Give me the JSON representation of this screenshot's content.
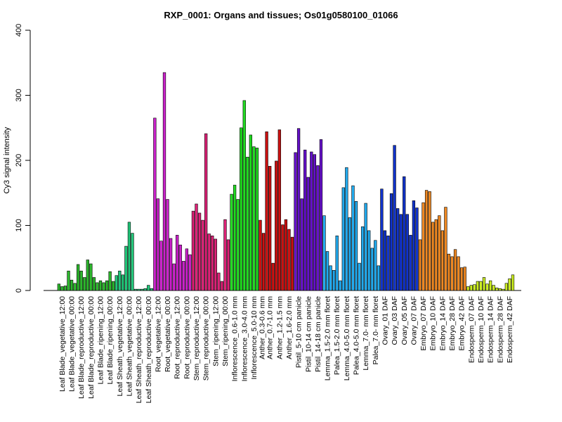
{
  "chart_data": {
    "type": "bar",
    "title": "RXP_0001: Organs and tissues; Os01g0580100_01066",
    "xlabel": "",
    "ylabel": "Cy3 signal intensity",
    "ylim": [
      0,
      400
    ],
    "yticks": [
      0,
      100,
      200,
      300,
      400
    ],
    "grid": false,
    "legend": "none",
    "groups": [
      {
        "label": "Leaf Blade_vegetative_12:00",
        "color": "#2db82d",
        "values": [
          10,
          6,
          7
        ]
      },
      {
        "label": "Leaf Blade_vegetative_00:00",
        "color": "#2db82d",
        "values": [
          30,
          16,
          11
        ]
      },
      {
        "label": "Leaf Blade_reproductive_12:00",
        "color": "#2db82d",
        "values": [
          40,
          30,
          20
        ]
      },
      {
        "label": "Leaf Blade_reproductive_00:00",
        "color": "#2db82d",
        "values": [
          47,
          41,
          20
        ]
      },
      {
        "label": "Leaf Blade_ripening_12:00",
        "color": "#2db82d",
        "values": [
          12,
          15,
          12
        ]
      },
      {
        "label": "Leaf Blade_ripening_00:00",
        "color": "#2db82d",
        "values": [
          15,
          29,
          14
        ]
      },
      {
        "label": "Leaf Sheath_vegetative_12:00",
        "color": "#22c77a",
        "values": [
          23,
          30,
          24
        ]
      },
      {
        "label": "Leaf Sheath_vegetative_00:00",
        "color": "#22c77a",
        "values": [
          68,
          105,
          88
        ]
      },
      {
        "label": "Leaf Sheath_reproductive_12:00",
        "color": "#22c77a",
        "values": [
          2,
          2,
          2
        ]
      },
      {
        "label": "Leaf Sheath_reproductive_00:00",
        "color": "#22c77a",
        "values": [
          3,
          8,
          3
        ]
      },
      {
        "label": "Root_vegetative_12:00",
        "color": "#cc22cc",
        "values": [
          265,
          141,
          76
        ]
      },
      {
        "label": "Root_vegetative_00:00",
        "color": "#cc22cc",
        "values": [
          335,
          140,
          80
        ]
      },
      {
        "label": "Root_reproductive_12:00",
        "color": "#cc22cc",
        "values": [
          41,
          85,
          70
        ]
      },
      {
        "label": "Root_reproductive_00:00",
        "color": "#cc22cc",
        "values": [
          45,
          64,
          55
        ]
      },
      {
        "label": "Stem_reproductive_12:00",
        "color": "#dd2277",
        "values": [
          122,
          133,
          119
        ]
      },
      {
        "label": "Stem_reproductive_00:00",
        "color": "#dd2277",
        "values": [
          108,
          241,
          87
        ]
      },
      {
        "label": "Stem_ripening_12:00",
        "color": "#dd2277",
        "values": [
          84,
          79,
          27
        ]
      },
      {
        "label": "Stem_ripening_00:00",
        "color": "#dd2277",
        "values": [
          14,
          109,
          78
        ]
      },
      {
        "label": "Inflorescence_0.6-1.0 mm",
        "color": "#22dd22",
        "values": [
          148,
          162,
          140
        ]
      },
      {
        "label": "Inflorescence_3.0-4.0 mm",
        "color": "#22dd22",
        "values": [
          250,
          292,
          205
        ]
      },
      {
        "label": "Inflorescence_5.0-10 mm",
        "color": "#22dd22",
        "values": [
          239,
          221,
          219
        ]
      },
      {
        "label": "Anther_0.3-0.6 mm",
        "color": "#cc1111",
        "values": [
          108,
          88
        ]
      },
      {
        "label": "Anther_0.7-1.0 mm",
        "color": "#cc1111",
        "values": [
          244,
          191,
          42
        ]
      },
      {
        "label": "Anther_1.2-1.5 mm",
        "color": "#cc1111",
        "values": [
          199,
          247,
          101
        ]
      },
      {
        "label": "Anther_1.6-2.0 mm",
        "color": "#cc1111",
        "values": [
          109,
          94,
          82
        ]
      },
      {
        "label": "Pistil_5-10 cm panicle",
        "color": "#6611cc",
        "values": [
          212,
          249,
          141
        ]
      },
      {
        "label": "Pistil_10-14 cm panicle",
        "color": "#6611cc",
        "values": [
          216,
          174,
          213
        ]
      },
      {
        "label": "Pistil_14-18 cm panicle",
        "color": "#6611cc",
        "values": [
          209,
          192,
          232
        ]
      },
      {
        "label": "Lemma_1.5-2.0 mm floret",
        "color": "#22aaee",
        "values": [
          115,
          60,
          38
        ]
      },
      {
        "label": "Palea_1.5-2.0 mm floret",
        "color": "#22aaee",
        "values": [
          31,
          84,
          15
        ]
      },
      {
        "label": "Lemma_4.0-5.0 mm floret",
        "color": "#22aaee",
        "values": [
          158,
          189,
          112
        ]
      },
      {
        "label": "Palea_4.0-5.0 mm floret",
        "color": "#22aaee",
        "values": [
          161,
          137,
          42
        ]
      },
      {
        "label": "Lemma_7.0- mm floret",
        "color": "#22aaee",
        "values": [
          98,
          134,
          92
        ]
      },
      {
        "label": "Palea_7.0- mm floret",
        "color": "#22aaee",
        "values": [
          65,
          77,
          38
        ]
      },
      {
        "label": "Ovary_01 DAF",
        "color": "#1133cc",
        "values": [
          156,
          92,
          84
        ]
      },
      {
        "label": "Ovary_03 DAF",
        "color": "#1133cc",
        "values": [
          149,
          223,
          126
        ]
      },
      {
        "label": "Ovary_05 DAF",
        "color": "#1133cc",
        "values": [
          117,
          175,
          117
        ]
      },
      {
        "label": "Ovary_07 DAF",
        "color": "#1133cc",
        "values": [
          85,
          138,
          127
        ]
      },
      {
        "label": "Embryo_07 DAF",
        "color": "#ee8822",
        "values": [
          78,
          135,
          154
        ]
      },
      {
        "label": "Embryo_10 DAF",
        "color": "#ee8822",
        "values": [
          152,
          105,
          109
        ]
      },
      {
        "label": "Embryo_14 DAF",
        "color": "#ee8822",
        "values": [
          115,
          92,
          128
        ]
      },
      {
        "label": "Embryo_28 DAF",
        "color": "#ee8822",
        "values": [
          56,
          52,
          63
        ]
      },
      {
        "label": "Embryo_42 DAF",
        "color": "#ee8822",
        "values": [
          52,
          35,
          36
        ]
      },
      {
        "label": "Endosperm_07 DAF",
        "color": "#ccee22",
        "values": [
          6,
          8,
          9
        ]
      },
      {
        "label": "Endosperm_10 DAF",
        "color": "#ccee22",
        "values": [
          14,
          14,
          20
        ]
      },
      {
        "label": "Endosperm_14 DAF",
        "color": "#ccee22",
        "values": [
          10,
          15,
          8
        ]
      },
      {
        "label": "Endosperm_28 DAF",
        "color": "#ccee22",
        "values": [
          4,
          3,
          2
        ]
      },
      {
        "label": "Endosperm_42 DAF",
        "color": "#ccee22",
        "values": [
          11,
          18,
          24
        ]
      }
    ]
  }
}
